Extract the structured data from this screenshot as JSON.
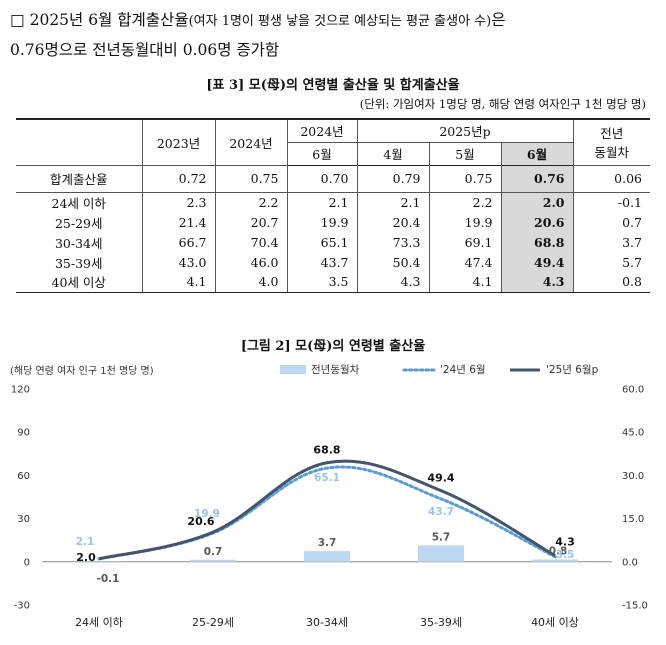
{
  "intro": {
    "bullet": "□",
    "line1_a": "2025년 6월 합계출산율",
    "line1_b": "(여자 1명이 평생 낳을 것으로 예상되는 평균 출생아 수)",
    "line1_c": "은",
    "line2": "0.76명으로 전년동월대비 0.06명 증가함"
  },
  "table": {
    "title": "[표 3] 모(母)의 연령별 출산율 및 합계출산율",
    "unit": "(단위: 가임여자 1명당 명, 해당 연령 여자인구 1천 명당 명)",
    "headers": {
      "y2023": "2023년",
      "y2024": "2024년",
      "y2024m": "2024년",
      "y2025p": "2025년p",
      "m6a": "6월",
      "m4": "4월",
      "m5": "5월",
      "m6b": "6월",
      "yoy1": "전년",
      "yoy2": "동월차"
    },
    "rows": [
      {
        "label": "합계출산율",
        "v": [
          "0.72",
          "0.75",
          "0.70",
          "0.79",
          "0.75",
          "0.76",
          "0.06"
        ]
      },
      {
        "label": "24세 이하",
        "v": [
          "2.3",
          "2.2",
          "2.1",
          "2.1",
          "2.2",
          "2.0",
          "-0.1"
        ]
      },
      {
        "label": "25-29세",
        "v": [
          "21.4",
          "20.7",
          "19.9",
          "20.4",
          "19.9",
          "20.6",
          "0.7"
        ]
      },
      {
        "label": "30-34세",
        "v": [
          "66.7",
          "70.4",
          "65.1",
          "73.3",
          "69.1",
          "68.8",
          "3.7"
        ]
      },
      {
        "label": "35-39세",
        "v": [
          "43.0",
          "46.0",
          "43.7",
          "50.4",
          "47.4",
          "49.4",
          "5.7"
        ]
      },
      {
        "label": "40세 이상",
        "v": [
          "4.1",
          "4.0",
          "3.5",
          "4.3",
          "4.1",
          "4.3",
          "0.8"
        ]
      }
    ]
  },
  "figure": {
    "title": "[그림 2] 모(母)의 연령별 출산율"
  },
  "chart_data": {
    "type": "bar+line",
    "ylabel_left": "(해당 연령 여자 인구 1천 명당 명)",
    "categories": [
      "24세 이하",
      "25-29세",
      "30-34세",
      "35-39세",
      "40세 이상"
    ],
    "left_axis": {
      "range": [
        -30,
        120
      ],
      "ticks": [
        "-30",
        "0",
        "30",
        "60",
        "90",
        "120"
      ],
      "values": [
        -30,
        0,
        30,
        60,
        90,
        120
      ]
    },
    "right_axis": {
      "range": [
        -15,
        60
      ],
      "ticks": [
        "-15.0",
        "0.0",
        "15.0",
        "30.0",
        "45.0",
        "60.0"
      ],
      "values": [
        -15,
        0,
        15,
        30,
        45,
        60
      ]
    },
    "series": [
      {
        "name": "전년동월차",
        "kind": "bar",
        "axis": "right",
        "color": "#bdd7ee",
        "values": [
          -0.1,
          0.7,
          3.7,
          5.7,
          0.8
        ],
        "labels": [
          "-0.1",
          "0.7",
          "3.7",
          "5.7",
          "0.8"
        ]
      },
      {
        "name": "'24년 6월",
        "kind": "dotted-line",
        "axis": "left",
        "color": "#5b9bd5",
        "values": [
          2.1,
          19.9,
          65.1,
          43.7,
          3.5
        ],
        "labels": [
          "2.1",
          "19.9",
          "65.1",
          "43.7",
          "3.5"
        ]
      },
      {
        "name": "'25년 6월p",
        "kind": "line",
        "axis": "left",
        "color": "#44546a",
        "values": [
          2.0,
          20.6,
          68.8,
          49.4,
          4.3
        ],
        "labels": [
          "2.0",
          "20.6",
          "68.8",
          "49.4",
          "4.3"
        ]
      }
    ]
  }
}
